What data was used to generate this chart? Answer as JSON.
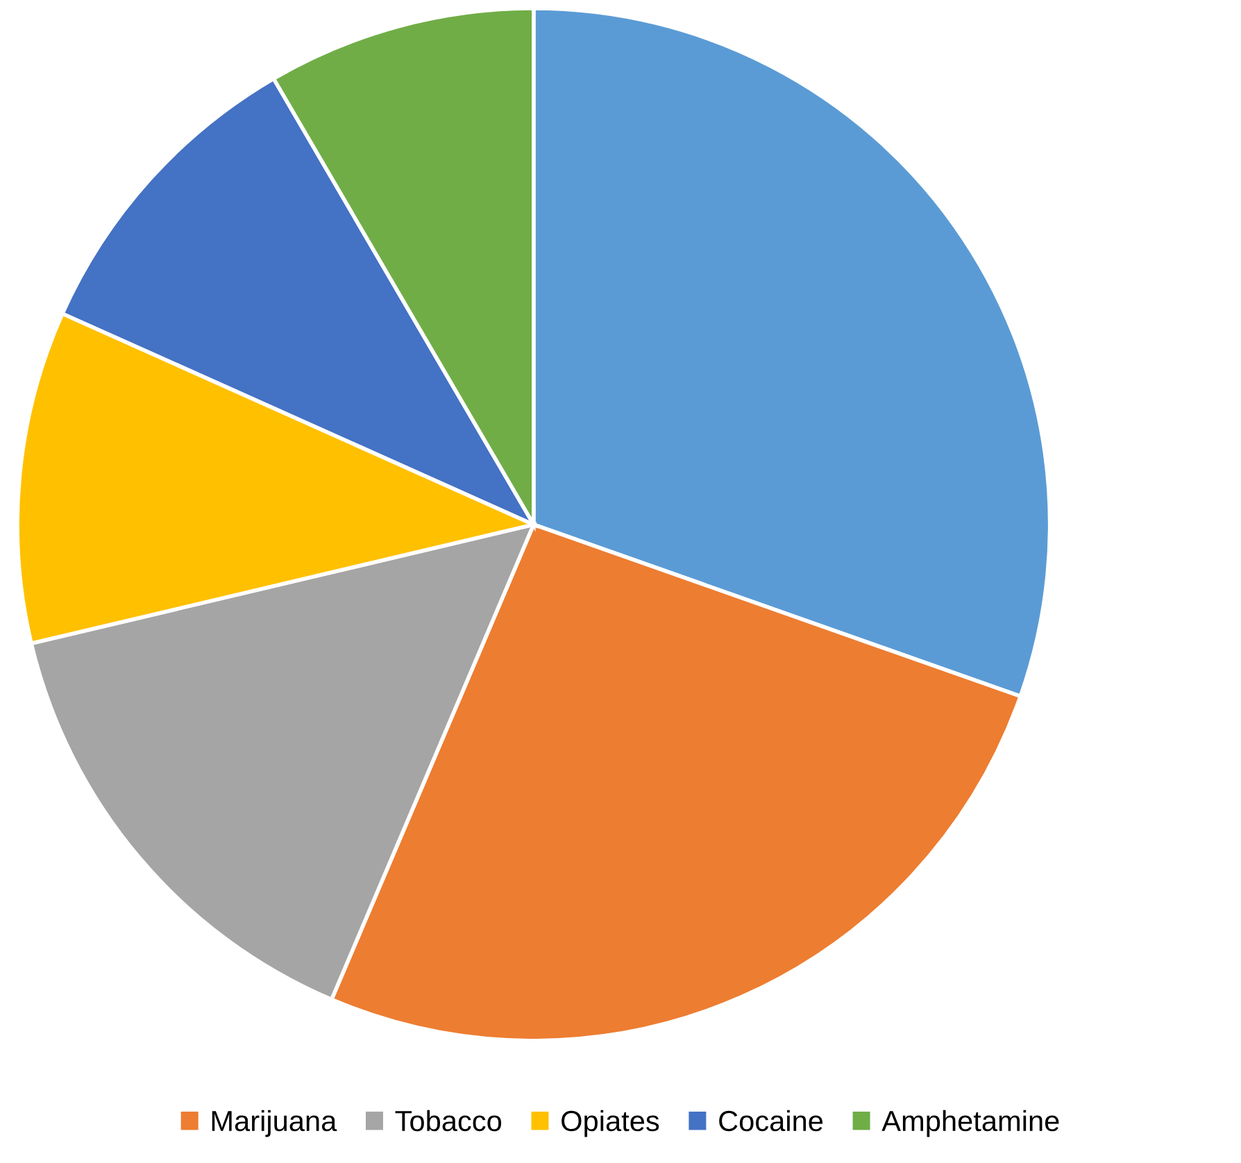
{
  "chart_data": {
    "type": "pie",
    "categories": [
      null,
      "Marijuana",
      "Tobacco",
      "Opiates",
      "Cocaine",
      "Amphetamine"
    ],
    "values": [
      30.4,
      26.0,
      14.9,
      10.4,
      9.9,
      8.4
    ],
    "colors": [
      "#5b9bd5",
      "#ed7d31",
      "#a5a5a5",
      "#ffc000",
      "#4472c4",
      "#70ad47"
    ],
    "legend": "bottom"
  }
}
